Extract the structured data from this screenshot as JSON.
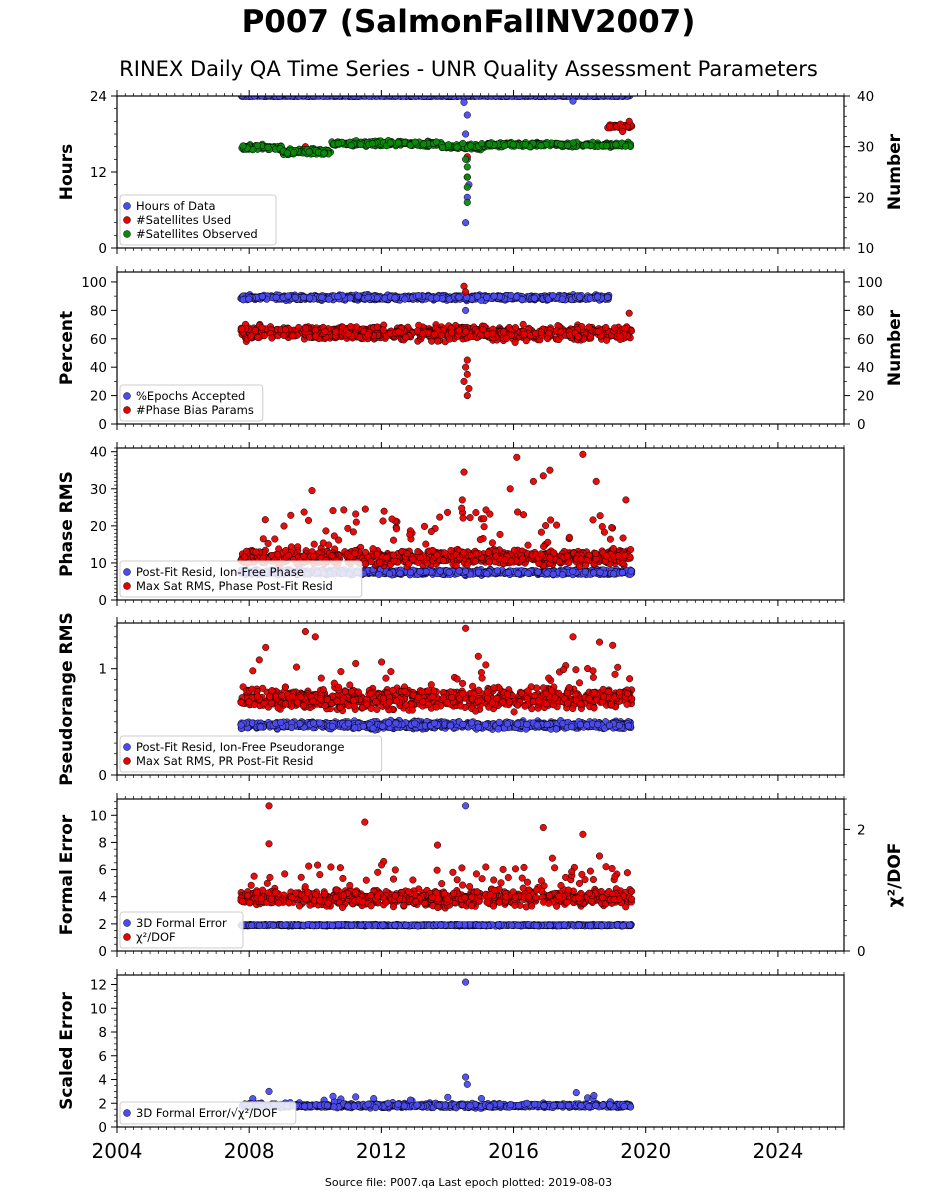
{
  "title": "P007 (SalmonFallNV2007)",
  "subtitle": "RINEX Daily QA Time Series - UNR Quality Assessment Parameters",
  "footer": "Source file: P007.qa Last epoch plotted: 2019-08-03",
  "colors": {
    "blue": "#4b4bf0",
    "red": "#e60000",
    "green": "#0a8a0a",
    "dark": "#14145a",
    "edge": "#000000"
  },
  "chart_data": {
    "type": "scatter",
    "x_axis": {
      "range": [
        2004.0,
        2026.0
      ],
      "ticks": [
        2004,
        2008,
        2012,
        2016,
        2020,
        2024
      ],
      "tick_labels": [
        "2004",
        "2008",
        "2012",
        "2016",
        "2020",
        "2024"
      ],
      "minor_step": 0.25
    },
    "data_range": {
      "start": 2007.75,
      "end": 2019.58,
      "gap": [
        2019.0,
        2019.58
      ]
    },
    "panels": [
      {
        "id": "hours",
        "ylabel": "Hours",
        "ylim": [
          0,
          24
        ],
        "yticks": [
          0,
          12,
          24
        ],
        "yminor": 2,
        "y2label": "Number",
        "y2lim": [
          10,
          40
        ],
        "y2ticks": [
          10,
          20,
          30,
          40
        ],
        "y2minor": 2,
        "legend": [
          "Hours of Data",
          "#Satellites Used",
          "#Satellites Observed"
        ],
        "series": [
          {
            "name": "Hours of Data",
            "axis": "left",
            "color": "blue",
            "model": "band",
            "level": 24,
            "spread": 0.1,
            "outliers": [
              [
                2014.55,
                4.0
              ],
              [
                2014.6,
                8.0
              ],
              [
                2014.65,
                10.0
              ],
              [
                2014.6,
                14.0
              ],
              [
                2014.55,
                18.0
              ],
              [
                2014.5,
                23.0
              ],
              [
                2017.8,
                23.2
              ],
              [
                2014.6,
                21.0
              ]
            ]
          },
          {
            "name": "#Satellites Used",
            "axis": "right",
            "color": "red",
            "model": "segments",
            "segments": [
              [
                2018.85,
                2019.58,
                34.0,
                0.5
              ]
            ],
            "outliers": [
              [
                2009.7,
                30.0
              ],
              [
                2014.6,
                28.0
              ],
              [
                2014.6,
                24.0
              ],
              [
                2019.3,
                33.0
              ],
              [
                2019.5,
                35.0
              ]
            ]
          },
          {
            "name": "#Satellites Observed",
            "axis": "right",
            "color": "green",
            "model": "segments",
            "segments": [
              [
                2007.75,
                2009.0,
                29.8,
                0.8
              ],
              [
                2009.0,
                2010.5,
                29.0,
                0.8
              ],
              [
                2010.5,
                2013.8,
                30.6,
                0.8
              ],
              [
                2013.8,
                2015.2,
                30.0,
                0.8
              ],
              [
                2015.2,
                2019.58,
                30.4,
                0.6
              ]
            ],
            "outliers": [
              [
                2014.6,
                26.0
              ],
              [
                2014.6,
                22.0
              ],
              [
                2014.6,
                19.0
              ],
              [
                2014.6,
                24.0
              ],
              [
                2014.55,
                27.5
              ]
            ]
          }
        ]
      },
      {
        "id": "percent",
        "ylabel": "Percent",
        "ylim": [
          0,
          107
        ],
        "yticks": [
          0,
          20,
          40,
          60,
          80,
          100
        ],
        "yminor": 10,
        "y2label": "Number",
        "y2lim": [
          0,
          107
        ],
        "y2ticks": [
          0,
          20,
          40,
          60,
          80,
          100
        ],
        "y2minor": 10,
        "legend": [
          "%Epochs Accepted",
          "#Phase Bias Params"
        ],
        "series": [
          {
            "name": "%Epochs Accepted",
            "axis": "left",
            "color": "blue",
            "model": "band",
            "start": 2007.75,
            "end": 2018.9,
            "level": 89,
            "spread": 2.5,
            "outliers": [
              [
                2014.55,
                80.0
              ]
            ]
          },
          {
            "name": "#Phase Bias Params",
            "axis": "right",
            "color": "red",
            "model": "band",
            "start": 2007.75,
            "end": 2019.58,
            "level": 64,
            "spread": 7,
            "outliers": [
              [
                2014.6,
                20.0
              ],
              [
                2014.65,
                25.0
              ],
              [
                2014.5,
                30.0
              ],
              [
                2014.6,
                35.0
              ],
              [
                2014.55,
                40.0
              ],
              [
                2014.6,
                45.0
              ],
              [
                2014.5,
                97.0
              ],
              [
                2014.55,
                93.0
              ],
              [
                2019.5,
                78.0
              ]
            ]
          }
        ]
      },
      {
        "id": "phase",
        "ylabel": "Phase RMS",
        "ylim": [
          0,
          41
        ],
        "yticks": [
          0,
          10,
          20,
          30,
          40
        ],
        "yminor": 1,
        "legend": [
          "Post-Fit Resid, Ion-Free Phase",
          "Max Sat RMS, Phase Post-Fit Resid"
        ],
        "series": [
          {
            "name": "Post-Fit Resid, Ion-Free Phase",
            "axis": "left",
            "color": "blue",
            "model": "band",
            "level": 7.5,
            "spread": 1.0,
            "outliers": []
          },
          {
            "name": "Max Sat RMS, Phase Post-Fit Resid",
            "axis": "left",
            "color": "red",
            "model": "band",
            "level": 11.5,
            "spread": 3,
            "spikes": 0.1,
            "spikeMax": 13,
            "outliers": [
              [
                2009.9,
                29.5
              ],
              [
                2014.5,
                34.5
              ],
              [
                2014.45,
                27.0
              ],
              [
                2016.1,
                38.5
              ],
              [
                2016.6,
                32.0
              ],
              [
                2016.9,
                33.5
              ],
              [
                2017.1,
                35.0
              ],
              [
                2018.1,
                39.3
              ],
              [
                2018.5,
                32.0
              ],
              [
                2019.4,
                27.0
              ],
              [
                2016.3,
                23.0
              ],
              [
                2015.9,
                30.0
              ]
            ]
          }
        ]
      },
      {
        "id": "pseudorange",
        "ylabel": "Pseudorange RMS",
        "ylim": [
          0,
          1.43
        ],
        "yticks": [
          0,
          1
        ],
        "yminor": 0.1,
        "legend": [
          "Post-Fit Resid, Ion-Free Pseudorange",
          "Max Sat RMS, PR Post-Fit Resid"
        ],
        "series": [
          {
            "name": "Post-Fit Resid, Ion-Free Pseudorange",
            "axis": "left",
            "color": "blue",
            "model": "band",
            "level": 0.47,
            "spread": 0.05,
            "outliers": []
          },
          {
            "name": "Max Sat RMS, PR Post-Fit Resid",
            "axis": "left",
            "color": "red",
            "model": "band",
            "level": 0.72,
            "spread": 0.14,
            "spikes": 0.08,
            "spikeMax": 0.35,
            "outliers": [
              [
                2009.7,
                1.35
              ],
              [
                2010.0,
                1.3
              ],
              [
                2014.55,
                1.38
              ],
              [
                2017.8,
                1.3
              ],
              [
                2018.6,
                1.25
              ],
              [
                2019.0,
                1.22
              ],
              [
                2008.5,
                1.2
              ]
            ]
          }
        ]
      },
      {
        "id": "formal",
        "ylabel": "Formal Error",
        "ylim": [
          0,
          11.2
        ],
        "yticks": [
          0,
          2,
          4,
          6,
          8,
          10
        ],
        "yminor": 0.5,
        "y2label": "χ²/DOF",
        "y2lim": [
          0,
          2.5
        ],
        "y2ticks": [
          0,
          2
        ],
        "y2minor": 0.25,
        "legend": [
          "3D Formal Error",
          "χ²/DOF"
        ],
        "series": [
          {
            "name": "3D Formal Error",
            "axis": "left",
            "color": "blue",
            "model": "band",
            "level": 1.9,
            "spread": 0.07,
            "outliers": [
              [
                2014.55,
                10.7
              ]
            ]
          },
          {
            "name": "χ²/DOF",
            "axis": "left",
            "color": "red",
            "model": "band",
            "level": 3.9,
            "spread": 0.85,
            "spikes": 0.1,
            "spikeMax": 2.5,
            "outliers": [
              [
                2008.6,
                10.7
              ],
              [
                2011.5,
                9.5
              ],
              [
                2016.9,
                9.1
              ],
              [
                2018.1,
                8.6
              ],
              [
                2008.6,
                7.9
              ],
              [
                2013.7,
                7.8
              ],
              [
                2018.6,
                7.0
              ]
            ]
          }
        ]
      },
      {
        "id": "scaled",
        "ylabel": "Scaled Error",
        "ylim": [
          0,
          12.8
        ],
        "yticks": [
          0,
          2,
          4,
          6,
          8,
          10,
          12
        ],
        "yminor": 0.5,
        "legend": [
          "3D Formal Error/√χ²/DOF"
        ],
        "series": [
          {
            "name": "3D Formal Error/√χ²/DOF",
            "axis": "left",
            "color": "blue",
            "model": "band",
            "level": 1.8,
            "spread": 0.25,
            "spikes": 0.04,
            "spikeMax": 0.8,
            "outliers": [
              [
                2014.55,
                12.2
              ],
              [
                2014.55,
                4.2
              ],
              [
                2014.6,
                3.6
              ],
              [
                2008.6,
                3.0
              ],
              [
                2017.9,
                2.9
              ]
            ]
          }
        ]
      }
    ]
  }
}
